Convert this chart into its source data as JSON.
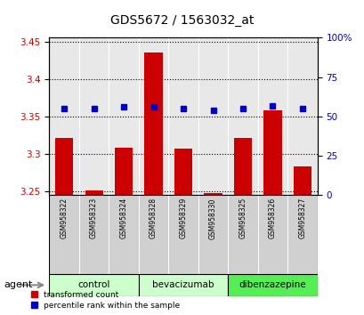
{
  "title": "GDS5672 / 1563032_at",
  "samples": [
    "GSM958322",
    "GSM958323",
    "GSM958324",
    "GSM958328",
    "GSM958329",
    "GSM958330",
    "GSM958325",
    "GSM958326",
    "GSM958327"
  ],
  "red_values": [
    3.322,
    3.252,
    3.308,
    3.435,
    3.307,
    3.248,
    3.322,
    3.358,
    3.283
  ],
  "blue_values": [
    55,
    55,
    56,
    56,
    55,
    54,
    55,
    57,
    55
  ],
  "ylim_left": [
    3.245,
    3.455
  ],
  "ylim_right": [
    0,
    100
  ],
  "yticks_left": [
    3.25,
    3.3,
    3.35,
    3.4,
    3.45
  ],
  "yticks_right": [
    0,
    25,
    50,
    75,
    100
  ],
  "group_defs": [
    {
      "start": 0,
      "end": 2,
      "label": "control",
      "color": "#ccffcc"
    },
    {
      "start": 3,
      "end": 5,
      "label": "bevacizumab",
      "color": "#ccffcc"
    },
    {
      "start": 6,
      "end": 8,
      "label": "dibenzazepine",
      "color": "#55ee55"
    }
  ],
  "bar_color": "#cc0000",
  "dot_color": "#0000cc",
  "bar_bottom": 3.245,
  "agent_label": "agent",
  "legend_red": "transformed count",
  "legend_blue": "percentile rank within the sample",
  "tick_label_color_left": "#cc0000",
  "tick_label_color_right": "#0000cc",
  "plot_bg": "#e8e8e8",
  "sample_box_color": "#d0d0d0"
}
